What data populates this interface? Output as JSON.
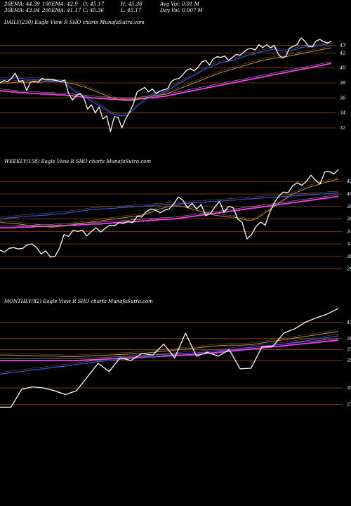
{
  "header": {
    "row1": [
      "20EMA: 44.39",
      "100EMA: 42.9",
      "O: 45.17",
      "H: 45.38",
      "Avg Vol: 0.01 M"
    ],
    "row2": [
      "30EMA: 43.94",
      "200EMA: 41.17",
      "C: 45.36",
      "L: 45.17",
      "Day Vol: 0.007 M"
    ]
  },
  "colors": {
    "price": "#ffffff",
    "ema_fast": "#3a5bff",
    "ema_slow": "#ff3cff",
    "ema_mid": "#d0a060",
    "grid": "#8b4513"
  },
  "chart_data": [
    {
      "type": "line",
      "title": "DAILY(230) Eagle  View  R                    SHO charts MunafaSutra.com",
      "ticks": [
        "43",
        "42",
        "40",
        "38",
        "36",
        "34",
        "32"
      ],
      "ylim": [
        30.5,
        45.5
      ],
      "grid": true,
      "series": [
        {
          "values": [
            38.0,
            38.3,
            38.2,
            38.6,
            39.3,
            38.2,
            38.3,
            37.0,
            38.1,
            38.2,
            38.1,
            38.6,
            38.4,
            38.5,
            38.4,
            38.3,
            38.2,
            38.4,
            36.6,
            35.7,
            36.3,
            36.6,
            36.0,
            34.5,
            35.1,
            34.0,
            34.8,
            33.2,
            33.6,
            31.5,
            33.5,
            33.4,
            32.0,
            33.2,
            34.1,
            35.2,
            36.8,
            37.1,
            37.4,
            36.8,
            37.2,
            36.6,
            36.9,
            37.1,
            37.2,
            38.2,
            38.5,
            38.6,
            39.1,
            39.7,
            39.9,
            39.6,
            40.1,
            40.8,
            41.0,
            40.4,
            41.2,
            41.5,
            41.4,
            41.6,
            41.0,
            41.4,
            41.8,
            41.7,
            42.1,
            42.5,
            42.6,
            42.4,
            43.1,
            42.7,
            43.1,
            42.7,
            43.0,
            41.9,
            41.3,
            41.5,
            42.6,
            42.9,
            43.1,
            44.0,
            43.6,
            42.9,
            42.8,
            43.6,
            43.8,
            43.5,
            43.3,
            43.6
          ]
        },
        {
          "values": [
            38.5,
            38.5,
            38.5,
            38.6,
            38.7,
            38.6,
            38.6,
            38.5,
            38.5,
            38.4,
            38.5,
            38.4,
            38.4,
            38.3,
            38.3,
            38.2,
            38.1,
            38.0,
            37.6,
            37.1,
            36.8,
            36.5,
            36.2,
            35.9,
            35.6,
            35.3,
            35.0,
            34.7,
            34.4,
            34.0,
            33.8,
            33.7,
            33.6,
            33.7,
            34.0,
            34.4,
            34.9,
            35.3,
            35.7,
            36.0,
            36.3,
            36.5,
            36.6,
            36.8,
            37.0,
            37.3,
            37.6,
            37.9,
            38.2,
            38.5,
            38.8,
            39.0,
            39.3,
            39.6,
            39.9,
            40.1,
            40.3,
            40.5,
            40.7,
            40.8,
            40.9,
            41.0,
            41.2,
            41.3,
            41.5,
            41.7,
            41.8,
            41.9,
            42.1,
            42.2,
            42.3,
            42.4,
            42.5,
            42.4,
            42.3,
            42.2,
            42.3,
            42.4,
            42.5,
            42.7,
            42.8,
            42.8,
            42.8,
            42.9,
            43.0,
            43.1,
            43.2,
            43.3
          ]
        },
        {
          "values": [
            38.0,
            38.0,
            38.0,
            38.0,
            38.1,
            38.1,
            38.1,
            38.1,
            38.1,
            38.1,
            38.1,
            38.1,
            38.2,
            38.2,
            38.2,
            38.2,
            38.2,
            38.1,
            38.0,
            37.9,
            37.8,
            37.6,
            37.5,
            37.3,
            37.1,
            36.9,
            36.7,
            36.5,
            36.3,
            36.1,
            35.9,
            35.8,
            35.7,
            35.6,
            35.6,
            35.7,
            35.8,
            35.9,
            36.0,
            36.1,
            36.2,
            36.3,
            36.4,
            36.5,
            36.6,
            36.8,
            37.0,
            37.2,
            37.4,
            37.6,
            37.8,
            38.0,
            38.2,
            38.4,
            38.6,
            38.8,
            39.0,
            39.2,
            39.4,
            39.5,
            39.7,
            39.8,
            40.0,
            40.1,
            40.3,
            40.4,
            40.6,
            40.7,
            40.9,
            41.0,
            41.1,
            41.2,
            41.3,
            41.4,
            41.5,
            41.5,
            41.6,
            41.7,
            41.8,
            41.9,
            42.0,
            42.1,
            42.2,
            42.3,
            42.4,
            42.5,
            42.6,
            42.7
          ]
        },
        {
          "values": [
            37.0,
            36.9,
            36.9,
            36.8,
            36.8,
            36.7,
            36.7,
            36.7,
            36.6,
            36.6,
            36.6,
            36.5,
            36.5,
            36.5,
            36.5,
            36.4,
            36.4,
            36.4,
            36.3,
            36.3,
            36.2,
            36.2,
            36.1,
            36.1,
            36.0,
            36.0,
            35.9,
            35.9,
            35.9,
            35.8,
            35.8,
            35.8,
            35.8,
            35.8,
            35.8,
            35.8,
            35.8,
            35.9,
            35.9,
            36.0,
            36.0,
            36.1,
            36.2,
            36.2,
            36.3,
            36.4,
            36.5,
            36.6,
            36.7,
            36.8,
            36.9,
            37.0,
            37.1,
            37.2,
            37.3,
            37.4,
            37.5,
            37.6,
            37.7,
            37.8,
            37.9,
            38.0,
            38.1,
            38.2,
            38.3,
            38.4,
            38.5,
            38.6,
            38.7,
            38.8,
            38.9,
            39.0,
            39.1,
            39.2,
            39.3,
            39.4,
            39.5,
            39.6,
            39.7,
            39.8,
            39.9,
            40.0,
            40.1,
            40.2,
            40.3,
            40.4,
            40.5,
            40.6
          ]
        }
      ]
    },
    {
      "type": "line",
      "title": "WEEKLY(158) Eagle  View  R                    SHO charts MunafaSutra.com",
      "ticks": [
        "42",
        "40",
        "38",
        "36",
        "34",
        "32",
        "30",
        "28"
      ],
      "ylim": [
        26.5,
        44.5
      ],
      "grid": true,
      "series": [
        {
          "values": [
            31.0,
            30.7,
            31.3,
            31.4,
            31.2,
            31.3,
            31.9,
            32.0,
            31.4,
            30.4,
            30.9,
            29.9,
            30.0,
            31.3,
            33.5,
            33.2,
            34.2,
            34.0,
            34.2,
            33.3,
            34.0,
            34.6,
            33.9,
            34.5,
            35.0,
            34.9,
            35.4,
            35.3,
            35.6,
            35.4,
            36.4,
            36.3,
            37.2,
            37.6,
            37.4,
            37.0,
            37.4,
            37.6,
            38.4,
            39.5,
            39.0,
            37.8,
            38.5,
            37.6,
            38.3,
            36.5,
            36.9,
            37.9,
            38.8,
            37.1,
            38.0,
            37.8,
            36.0,
            35.4,
            32.8,
            33.5,
            34.8,
            35.5,
            35.0,
            37.1,
            38.6,
            39.7,
            40.3,
            40.2,
            41.3,
            41.8,
            41.4,
            42.0,
            43.0,
            42.2,
            41.6,
            43.5,
            43.6,
            43.2,
            43.9
          ]
        },
        {
          "values": [
            36.0,
            36.1,
            36.2,
            36.2,
            36.3,
            36.4,
            36.4,
            36.5,
            36.5,
            36.6,
            36.6,
            36.7,
            36.8,
            36.8,
            36.9,
            37.0,
            37.1,
            37.2,
            37.3,
            37.4,
            37.5,
            37.5,
            37.6,
            37.6,
            37.7,
            37.7,
            37.8,
            37.8,
            37.9,
            37.9,
            38.0,
            38.0,
            38.1,
            38.1,
            38.2,
            38.2,
            38.3,
            38.3,
            38.4,
            38.4,
            38.5,
            38.5,
            38.6,
            38.6,
            38.7,
            38.7,
            38.8,
            38.8,
            38.9,
            38.9,
            39.0,
            39.0,
            39.1,
            39.1,
            39.2,
            39.2,
            39.3,
            39.3,
            39.4,
            39.4,
            39.5,
            39.5,
            39.6,
            39.6,
            39.7,
            39.7,
            39.8,
            39.8,
            39.9,
            39.9,
            40.0,
            40.0,
            40.1,
            40.1,
            40.2
          ]
        },
        {
          "values": [
            35.5,
            35.4,
            35.3,
            35.3,
            35.2,
            35.1,
            35.0,
            34.9,
            34.9,
            34.8,
            34.8,
            34.7,
            34.7,
            34.8,
            34.9,
            35.0,
            35.1,
            35.2,
            35.3,
            35.4,
            35.5,
            35.6,
            35.7,
            35.8,
            35.9,
            36.0,
            36.1,
            36.2,
            36.3,
            36.4,
            36.5,
            36.6,
            36.8,
            37.1,
            37.4,
            37.6,
            37.8,
            38.0,
            38.1,
            38.1,
            38.0,
            37.8,
            37.6,
            37.4,
            37.2,
            37.0,
            36.8,
            36.6,
            36.5,
            36.4,
            36.3,
            36.3,
            36.2,
            36.0,
            35.8,
            35.8,
            36.0,
            36.5,
            37.0,
            37.5,
            38.0,
            38.5,
            39.0,
            39.5,
            40.0,
            40.3,
            40.6,
            40.9,
            41.2,
            41.4,
            41.6,
            41.8,
            42.0,
            42.2,
            42.4
          ]
        },
        {
          "values": [
            34.6,
            34.6,
            34.6,
            34.6,
            34.7,
            34.7,
            34.7,
            34.7,
            34.8,
            34.8,
            34.8,
            34.8,
            34.9,
            34.9,
            34.9,
            35.0,
            35.0,
            35.0,
            35.1,
            35.1,
            35.2,
            35.2,
            35.2,
            35.3,
            35.3,
            35.4,
            35.4,
            35.5,
            35.5,
            35.6,
            35.6,
            35.7,
            35.7,
            35.8,
            35.8,
            35.9,
            35.9,
            36.0,
            36.0,
            36.1,
            36.2,
            36.3,
            36.4,
            36.5,
            36.6,
            36.7,
            36.8,
            36.9,
            37.0,
            37.1,
            37.2,
            37.3,
            37.4,
            37.5,
            37.6,
            37.7,
            37.8,
            37.9,
            38.0,
            38.1,
            38.2,
            38.3,
            38.4,
            38.5,
            38.6,
            38.7,
            38.8,
            38.9,
            39.0,
            39.1,
            39.2,
            39.3,
            39.4,
            39.5,
            39.6
          ]
        }
      ]
    },
    {
      "type": "line",
      "title": "MONTHLY(82) Eagle  View  R                    SHO charts MunafaSutra.com",
      "ticks": [
        "42",
        "39",
        "37",
        "35",
        "30",
        "27"
      ],
      "ylim": [
        24.5,
        45
      ],
      "grid": true,
      "series": [
        {
          "values": [
            26.5,
            26.5,
            29.8,
            30.2,
            30.0,
            29.5,
            28.8,
            29.5,
            32.0,
            34.5,
            33.0,
            35.5,
            35.0,
            36.3,
            36.0,
            38.0,
            35.5,
            40.0,
            35.8,
            36.5,
            35.8,
            37.0,
            33.5,
            33.6,
            37.5,
            37.6,
            40.0,
            40.8,
            42.0,
            42.8,
            43.5,
            44.5
          ]
        },
        {
          "values": [
            32.5,
            32.8,
            33.0,
            33.3,
            33.5,
            33.8,
            34.0,
            34.3,
            34.5,
            34.8,
            35.0,
            35.2,
            35.4,
            35.5,
            35.7,
            35.9,
            36.1,
            36.3,
            36.4,
            36.6,
            36.8,
            37.0,
            37.2,
            37.4,
            37.6,
            37.8,
            38.0,
            38.3,
            38.6,
            38.9,
            39.2,
            39.5
          ]
        },
        {
          "values": [
            36.0,
            36.0,
            35.9,
            35.9,
            35.8,
            35.8,
            35.7,
            35.7,
            35.8,
            35.9,
            36.0,
            36.1,
            36.2,
            36.3,
            36.5,
            36.7,
            36.9,
            37.1,
            37.3,
            37.5,
            37.7,
            37.8,
            37.8,
            37.9,
            38.2,
            38.5,
            38.8,
            39.1,
            39.4,
            39.7,
            40.0,
            40.3
          ]
        },
        {
          "values": [
            35.0,
            35.0,
            35.0,
            35.0,
            35.0,
            35.0,
            35.0,
            35.0,
            35.1,
            35.2,
            35.3,
            35.4,
            35.5,
            35.6,
            35.7,
            35.8,
            35.9,
            36.0,
            36.1,
            36.3,
            36.5,
            36.7,
            36.9,
            37.1,
            37.3,
            37.5,
            37.7,
            37.9,
            38.1,
            38.3,
            38.5,
            38.7
          ]
        }
      ]
    }
  ]
}
